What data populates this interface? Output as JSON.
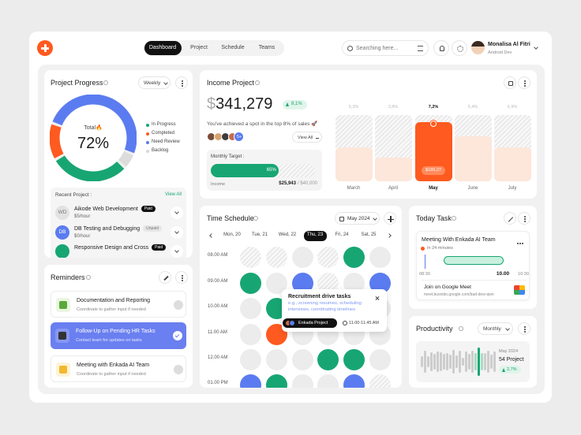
{
  "header": {
    "nav": [
      "Dashboard",
      "Project",
      "Schedule",
      "Teams"
    ],
    "search": "Searching here...",
    "user_name": "Monalisa Al Fitri",
    "user_role": "Android Dev"
  },
  "project_progress": {
    "title": "Project Progress",
    "period": "Weekly",
    "total_label": "Total🔥",
    "total": "72%",
    "legend": [
      "In Progress",
      "Completed",
      "Need Review",
      "Backlog"
    ],
    "recent_title": "Recent Project :",
    "view_all": "View All",
    "projects": [
      {
        "initials": "WD",
        "name": "Aikode Web Development",
        "status": "Paid",
        "rate": "$5/hour"
      },
      {
        "initials": "DB",
        "name": "DB Testing and Debugging",
        "status": "Unpaid",
        "rate": "$0/hour"
      },
      {
        "name": "Responsive Design and Cross",
        "status": "Paid"
      }
    ]
  },
  "reminders": {
    "title": "Reminders",
    "items": [
      {
        "title": "Documentation and Reporting",
        "subtitle": "Coordinate to gather input if needed"
      },
      {
        "title": "Follow-Up on Pending HR Tasks",
        "subtitle": "Contact team for updates on tasks"
      },
      {
        "title": "Meeting with Enkada AI Team",
        "subtitle": "Coordinate to gather input if needed"
      }
    ]
  },
  "income": {
    "title": "Income Project",
    "currency": "$",
    "amount": "341,279",
    "change": "8,1%",
    "note": "You've achieved a spot in the top 8% of sales 🚀",
    "view_all": "View All",
    "avatars_more": "5+",
    "target_label": "Monthly Target :",
    "target_percent": "65%",
    "income_label": "Income",
    "income_value": "$25,943",
    "income_total": "/ $40,000",
    "months": [
      {
        "name": "March",
        "change": "5,3%"
      },
      {
        "name": "April",
        "change": "3,8%"
      },
      {
        "name": "May",
        "change": "7,2%",
        "amount": "$189,27"
      },
      {
        "name": "June",
        "change": "5,4%"
      },
      {
        "name": "July",
        "change": "6,9%"
      }
    ]
  },
  "schedule": {
    "title": "Time Schedule",
    "month": "May 2024",
    "days": [
      "Mon, 20",
      "Tue, 21",
      "Wed, 22",
      "Thu, 23",
      "Fri, 24",
      "Sat, 25"
    ],
    "times": [
      "08.00 AM",
      "09.00 AM",
      "10.00 AM",
      "11.00 AM",
      "12.00 AM",
      "01.00 PM"
    ],
    "popup": {
      "title": "Recruitment drive tasks",
      "description": "e.g., screening resumes, scheduling interviews, coordinating timelines",
      "tag": "Enkada Project",
      "time": "11.00-11.45 AM"
    }
  },
  "today_task": {
    "title": "Today Task",
    "meeting": "Meeting With Enkada AI Team",
    "countdown": "In 24 minutes",
    "times": [
      "08:30",
      "10.00",
      "10:30"
    ],
    "join": "Join on Google Meet",
    "link": "meet.busnido.google.com/bad-dew-qwn"
  },
  "productivity": {
    "title": "Productivity",
    "period": "Monthly",
    "month": "May 2024",
    "projects": "54 Project",
    "change": "2,7%"
  }
}
